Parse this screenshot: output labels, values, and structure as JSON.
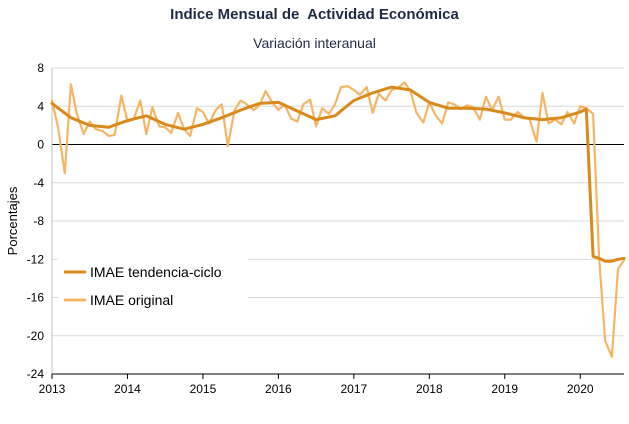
{
  "chart_data": {
    "type": "line",
    "title": "Indice Mensual de  Actividad Económica",
    "subtitle": "Variación interanual",
    "xlabel": "",
    "ylabel": "Porcentajes",
    "ylim": [
      -24,
      8
    ],
    "yticks": [
      8,
      4,
      0,
      -4,
      -8,
      -12,
      -16,
      -20,
      -24
    ],
    "xlim": [
      2013,
      2020.58
    ],
    "xticks": [
      "2013",
      "2014",
      "2015",
      "2016",
      "2017",
      "2018",
      "2019",
      "2020"
    ],
    "grid": "horizontal",
    "legend_position": "lower-left",
    "series": [
      {
        "name": "IMAE tendencia-ciclo",
        "color": "#d98a1c",
        "x": [
          2013.0,
          2013.25,
          2013.5,
          2013.75,
          2014.0,
          2014.25,
          2014.5,
          2014.75,
          2015.0,
          2015.25,
          2015.5,
          2015.75,
          2016.0,
          2016.25,
          2016.5,
          2016.75,
          2017.0,
          2017.25,
          2017.5,
          2017.75,
          2018.0,
          2018.25,
          2018.5,
          2018.75,
          2019.0,
          2019.25,
          2019.5,
          2019.75,
          2020.0,
          2020.08,
          2020.17,
          2020.25,
          2020.33,
          2020.42,
          2020.5,
          2020.58
        ],
        "values": [
          4.3,
          2.8,
          2.0,
          1.8,
          2.5,
          3.0,
          2.1,
          1.6,
          2.1,
          2.8,
          3.6,
          4.3,
          4.4,
          3.5,
          2.6,
          3.0,
          4.6,
          5.4,
          6.0,
          5.7,
          4.4,
          3.8,
          3.8,
          3.7,
          3.3,
          2.8,
          2.6,
          2.8,
          3.4,
          3.7,
          -11.7,
          -11.9,
          -12.2,
          -12.2,
          -12.0,
          -11.9
        ]
      },
      {
        "name": "IMAE original",
        "color": "#f5b565",
        "x": [
          2013.0,
          2013.08,
          2013.17,
          2013.25,
          2013.33,
          2013.42,
          2013.5,
          2013.58,
          2013.67,
          2013.75,
          2013.83,
          2013.92,
          2014.0,
          2014.08,
          2014.17,
          2014.25,
          2014.33,
          2014.42,
          2014.5,
          2014.58,
          2014.67,
          2014.75,
          2014.83,
          2014.92,
          2015.0,
          2015.08,
          2015.17,
          2015.25,
          2015.33,
          2015.42,
          2015.5,
          2015.58,
          2015.67,
          2015.75,
          2015.83,
          2015.92,
          2016.0,
          2016.08,
          2016.17,
          2016.25,
          2016.33,
          2016.42,
          2016.5,
          2016.58,
          2016.67,
          2016.75,
          2016.83,
          2016.92,
          2017.0,
          2017.08,
          2017.17,
          2017.25,
          2017.33,
          2017.42,
          2017.5,
          2017.58,
          2017.67,
          2017.75,
          2017.83,
          2017.92,
          2018.0,
          2018.08,
          2018.17,
          2018.25,
          2018.33,
          2018.42,
          2018.5,
          2018.58,
          2018.67,
          2018.75,
          2018.83,
          2018.92,
          2019.0,
          2019.08,
          2019.17,
          2019.25,
          2019.33,
          2019.42,
          2019.5,
          2019.58,
          2019.67,
          2019.75,
          2019.83,
          2019.92,
          2020.0,
          2020.08,
          2020.17,
          2020.25,
          2020.33,
          2020.42,
          2020.5,
          2020.58
        ],
        "values": [
          4.6,
          1.8,
          -3.0,
          6.3,
          3.2,
          1.1,
          2.4,
          1.6,
          1.4,
          0.9,
          1.0,
          5.1,
          2.4,
          2.6,
          4.6,
          1.1,
          3.9,
          1.9,
          1.8,
          1.2,
          3.3,
          1.6,
          0.9,
          3.8,
          3.4,
          2.2,
          3.6,
          4.2,
          -0.2,
          3.6,
          4.6,
          4.2,
          3.6,
          4.1,
          5.6,
          4.4,
          3.6,
          4.2,
          2.7,
          2.4,
          4.2,
          4.7,
          1.9,
          3.8,
          3.2,
          4.2,
          6.0,
          6.1,
          5.7,
          5.2,
          6.0,
          3.3,
          5.3,
          4.6,
          5.7,
          5.9,
          6.5,
          5.6,
          3.3,
          2.3,
          4.4,
          3.1,
          2.2,
          4.4,
          4.2,
          3.7,
          4.1,
          3.9,
          2.6,
          5.0,
          3.6,
          5.0,
          2.6,
          2.6,
          3.4,
          2.9,
          2.6,
          0.3,
          5.4,
          2.2,
          2.6,
          2.1,
          3.4,
          2.2,
          4.0,
          3.8,
          3.2,
          -11.8,
          -20.5,
          -22.2,
          -13.0,
          -12.1
        ]
      }
    ]
  }
}
